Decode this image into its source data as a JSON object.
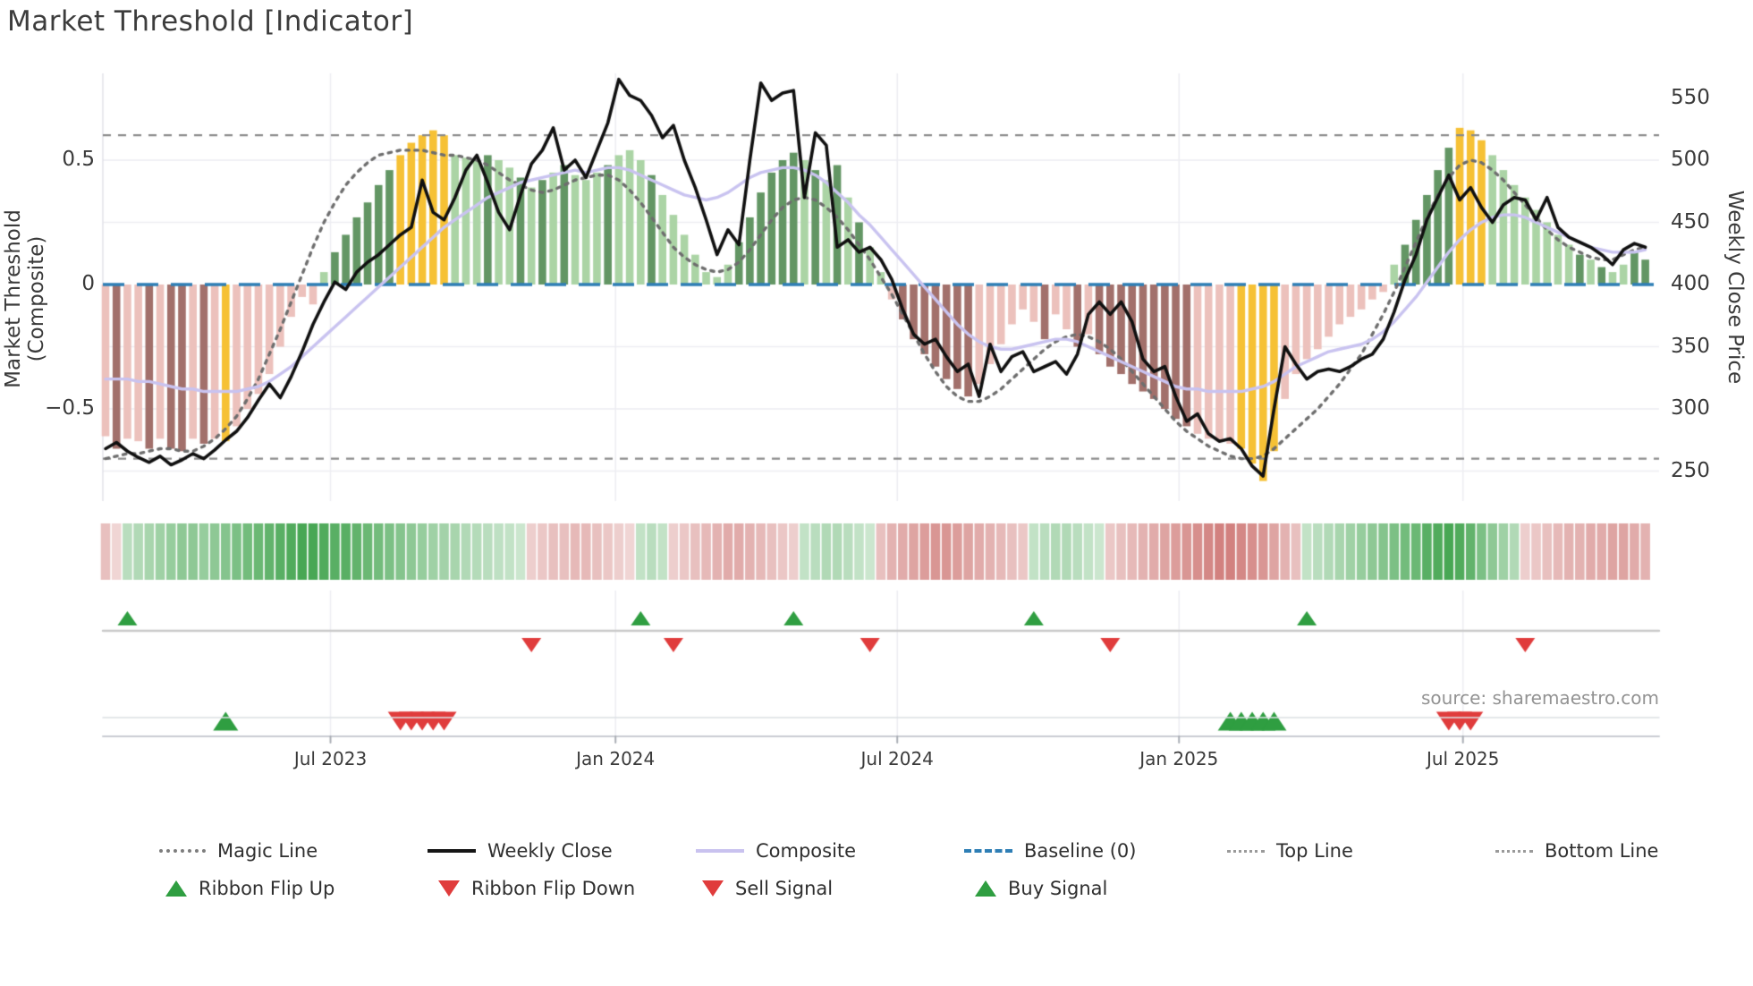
{
  "title": "Market Threshold [Indicator]",
  "source": "source: sharemaestro.com",
  "axes": {
    "left_title": "Market Threshold (Composite)",
    "right_title": "Weekly Close Price",
    "left_ticks": [
      {
        "value": 0.5,
        "label": "0.5"
      },
      {
        "value": 0,
        "label": "0"
      },
      {
        "value": -0.5,
        "label": "−0.5"
      }
    ],
    "right_ticks": [
      {
        "value": 550,
        "label": "550"
      },
      {
        "value": 500,
        "label": "500"
      },
      {
        "value": 450,
        "label": "450"
      },
      {
        "value": 400,
        "label": "400"
      },
      {
        "value": 350,
        "label": "350"
      },
      {
        "value": 300,
        "label": "300"
      },
      {
        "value": 250,
        "label": "250"
      }
    ],
    "x_ticks": [
      {
        "week": 20.6,
        "label": "Jul 2023"
      },
      {
        "week": 46.7,
        "label": "Jan 2024"
      },
      {
        "week": 72.5,
        "label": "Jul 2024"
      },
      {
        "week": 98.3,
        "label": "Jan 2025"
      },
      {
        "week": 124.3,
        "label": "Jul 2025"
      }
    ]
  },
  "colors": {
    "bar_light_pink": "#ecc1bc",
    "bar_dark_mauve": "#a2706b",
    "bar_yellow": "#f6c135",
    "bar_light_green": "#abd4a5",
    "bar_dark_green": "#639664",
    "weekly_close": "#101010",
    "composite": "#c9c3f0",
    "magic_line": "#6e6e6e",
    "baseline": "#2e7eb5",
    "top_bottom_line": "#8b8b8b",
    "ribbon_green": "#259633",
    "ribbon_red": "#c0504d",
    "signal_green": "#2f9e41",
    "signal_red": "#e03c3c",
    "grid": "#ededf2",
    "flip_row_line": "#c9c9c9"
  },
  "chart_data": {
    "type": "combo",
    "x_unit": "weekly, Feb 2023 - Nov 2025",
    "n_weeks": 142,
    "left_axis_range": [
      -0.85,
      0.85
    ],
    "right_axis_range": [
      226,
      570
    ],
    "reference_lines": {
      "baseline": 0,
      "top_line": 0.6,
      "bottom_line": -0.7
    },
    "threshold_bars": {
      "color_codes": "pmppmpmmpmpypppppppcgGGGGGGyyyyygggGggGgGgGgggGgggGgggggggGGGGGGgGgGgGggpmmmmmmmppppppmppmpmmmmmmmmmppppyyyyppppppppppgGGGGGyyyggggggggGgGggGG",
      "colors_legend": {
        "p": "light_pink",
        "m": "dark_mauve",
        "y": "yellow",
        "g": "light_green",
        "G": "dark_green"
      },
      "values": [
        -0.61,
        -0.66,
        -0.62,
        -0.63,
        -0.66,
        -0.62,
        -0.66,
        -0.67,
        -0.62,
        -0.64,
        -0.62,
        -0.63,
        -0.57,
        -0.5,
        -0.44,
        -0.36,
        -0.25,
        -0.13,
        -0.05,
        -0.08,
        0.05,
        0.13,
        0.2,
        0.27,
        0.33,
        0.4,
        0.46,
        0.52,
        0.57,
        0.6,
        0.62,
        0.6,
        0.52,
        0.51,
        0.5,
        0.52,
        0.5,
        0.47,
        0.43,
        0.39,
        0.42,
        0.45,
        0.48,
        0.44,
        0.42,
        0.45,
        0.48,
        0.52,
        0.54,
        0.5,
        0.44,
        0.36,
        0.28,
        0.2,
        0.12,
        0.05,
        0.03,
        0.08,
        0.17,
        0.27,
        0.37,
        0.45,
        0.5,
        0.53,
        0.5,
        0.46,
        0.42,
        0.48,
        0.35,
        0.25,
        0.15,
        0.05,
        -0.06,
        -0.14,
        -0.22,
        -0.28,
        -0.33,
        -0.38,
        -0.42,
        -0.45,
        -0.4,
        -0.32,
        -0.24,
        -0.16,
        -0.1,
        -0.15,
        -0.22,
        -0.12,
        -0.18,
        -0.25,
        -0.2,
        -0.28,
        -0.33,
        -0.36,
        -0.4,
        -0.43,
        -0.46,
        -0.5,
        -0.54,
        -0.57,
        -0.6,
        -0.62,
        -0.63,
        -0.64,
        -0.66,
        -0.72,
        -0.79,
        -0.67,
        -0.46,
        -0.36,
        -0.3,
        -0.26,
        -0.21,
        -0.16,
        -0.13,
        -0.1,
        -0.06,
        -0.03,
        0.08,
        0.16,
        0.26,
        0.36,
        0.46,
        0.55,
        0.63,
        0.62,
        0.58,
        0.52,
        0.46,
        0.4,
        0.35,
        0.3,
        0.25,
        0.2,
        0.16,
        0.12,
        0.1,
        0.07,
        0.05,
        0.08,
        0.13,
        0.1
      ]
    },
    "weekly_close": [
      268,
      273,
      266,
      261,
      257,
      262,
      255,
      259,
      264,
      260,
      267,
      275,
      282,
      293,
      307,
      320,
      309,
      326,
      346,
      368,
      386,
      402,
      396,
      410,
      418,
      424,
      432,
      440,
      446,
      484,
      458,
      452,
      470,
      492,
      504,
      482,
      458,
      444,
      472,
      497,
      508,
      526,
      492,
      500,
      486,
      508,
      530,
      565,
      552,
      548,
      536,
      518,
      528,
      500,
      478,
      452,
      424,
      444,
      432,
      500,
      562,
      548,
      554,
      556,
      470,
      522,
      512,
      430,
      436,
      426,
      430,
      420,
      404,
      380,
      360,
      352,
      356,
      342,
      330,
      336,
      310,
      352,
      330,
      342,
      346,
      330,
      334,
      338,
      328,
      344,
      376,
      386,
      376,
      386,
      370,
      340,
      330,
      334,
      310,
      290,
      296,
      280,
      274,
      276,
      268,
      254,
      246,
      300,
      350,
      336,
      324,
      330,
      332,
      330,
      334,
      340,
      344,
      356,
      378,
      404,
      424,
      452,
      470,
      488,
      468,
      478,
      462,
      450,
      464,
      470,
      468,
      452,
      470,
      446,
      438,
      434,
      430,
      424,
      416,
      428,
      433,
      430
    ],
    "composite": [
      -0.38,
      -0.38,
      -0.38,
      -0.39,
      -0.39,
      -0.4,
      -0.41,
      -0.42,
      -0.42,
      -0.43,
      -0.43,
      -0.43,
      -0.43,
      -0.42,
      -0.41,
      -0.39,
      -0.36,
      -0.33,
      -0.29,
      -0.25,
      -0.21,
      -0.17,
      -0.13,
      -0.09,
      -0.05,
      -0.01,
      0.03,
      0.07,
      0.11,
      0.15,
      0.19,
      0.23,
      0.26,
      0.29,
      0.32,
      0.35,
      0.37,
      0.39,
      0.41,
      0.42,
      0.43,
      0.44,
      0.45,
      0.46,
      0.45,
      0.46,
      0.47,
      0.47,
      0.46,
      0.44,
      0.42,
      0.4,
      0.38,
      0.36,
      0.35,
      0.34,
      0.35,
      0.37,
      0.4,
      0.43,
      0.45,
      0.46,
      0.47,
      0.47,
      0.46,
      0.44,
      0.41,
      0.37,
      0.33,
      0.28,
      0.24,
      0.19,
      0.14,
      0.09,
      0.04,
      -0.01,
      -0.06,
      -0.11,
      -0.16,
      -0.2,
      -0.23,
      -0.25,
      -0.26,
      -0.26,
      -0.25,
      -0.24,
      -0.23,
      -0.22,
      -0.22,
      -0.23,
      -0.25,
      -0.27,
      -0.29,
      -0.31,
      -0.33,
      -0.35,
      -0.37,
      -0.39,
      -0.41,
      -0.42,
      -0.42,
      -0.43,
      -0.43,
      -0.43,
      -0.43,
      -0.42,
      -0.41,
      -0.39,
      -0.36,
      -0.33,
      -0.31,
      -0.29,
      -0.27,
      -0.26,
      -0.25,
      -0.24,
      -0.22,
      -0.19,
      -0.15,
      -0.1,
      -0.05,
      0.01,
      0.07,
      0.13,
      0.18,
      0.22,
      0.25,
      0.27,
      0.28,
      0.28,
      0.27,
      0.25,
      0.23,
      0.21,
      0.19,
      0.17,
      0.15,
      0.14,
      0.13,
      0.13,
      0.13,
      0.14
    ],
    "magic_line": [
      -0.7,
      -0.69,
      -0.68,
      -0.68,
      -0.67,
      -0.66,
      -0.66,
      -0.67,
      -0.67,
      -0.65,
      -0.62,
      -0.58,
      -0.53,
      -0.46,
      -0.38,
      -0.28,
      -0.18,
      -0.07,
      0.04,
      0.15,
      0.25,
      0.33,
      0.4,
      0.45,
      0.49,
      0.52,
      0.53,
      0.54,
      0.54,
      0.54,
      0.53,
      0.52,
      0.52,
      0.51,
      0.5,
      0.48,
      0.45,
      0.42,
      0.4,
      0.38,
      0.37,
      0.38,
      0.4,
      0.42,
      0.43,
      0.44,
      0.44,
      0.42,
      0.38,
      0.33,
      0.27,
      0.21,
      0.15,
      0.11,
      0.08,
      0.06,
      0.05,
      0.06,
      0.09,
      0.14,
      0.2,
      0.26,
      0.31,
      0.34,
      0.35,
      0.34,
      0.31,
      0.27,
      0.22,
      0.16,
      0.1,
      0.03,
      -0.04,
      -0.12,
      -0.2,
      -0.28,
      -0.35,
      -0.41,
      -0.45,
      -0.47,
      -0.47,
      -0.45,
      -0.42,
      -0.38,
      -0.34,
      -0.3,
      -0.26,
      -0.23,
      -0.21,
      -0.2,
      -0.21,
      -0.23,
      -0.26,
      -0.3,
      -0.35,
      -0.4,
      -0.45,
      -0.5,
      -0.55,
      -0.59,
      -0.62,
      -0.65,
      -0.67,
      -0.69,
      -0.7,
      -0.7,
      -0.69,
      -0.66,
      -0.62,
      -0.58,
      -0.54,
      -0.5,
      -0.45,
      -0.4,
      -0.34,
      -0.28,
      -0.2,
      -0.12,
      -0.03,
      0.07,
      0.17,
      0.27,
      0.36,
      0.43,
      0.48,
      0.5,
      0.49,
      0.46,
      0.42,
      0.37,
      0.32,
      0.27,
      0.22,
      0.18,
      0.15,
      0.13,
      0.11,
      0.1,
      0.1,
      0.12,
      0.14,
      0.15
    ],
    "ribbon": [
      -0.3,
      -0.15,
      0.25,
      0.3,
      0.35,
      0.4,
      0.45,
      0.5,
      0.5,
      0.45,
      0.5,
      0.55,
      0.6,
      0.65,
      0.7,
      0.75,
      0.8,
      0.85,
      0.9,
      0.9,
      0.85,
      0.8,
      0.8,
      0.75,
      0.7,
      0.65,
      0.6,
      0.55,
      0.5,
      0.45,
      0.4,
      0.38,
      0.35,
      0.3,
      0.28,
      0.25,
      0.22,
      0.2,
      0.15,
      -0.2,
      -0.25,
      -0.3,
      -0.3,
      -0.35,
      -0.35,
      -0.3,
      -0.25,
      -0.2,
      -0.15,
      0.2,
      0.25,
      0.2,
      -0.2,
      -0.25,
      -0.3,
      -0.35,
      -0.4,
      -0.45,
      -0.45,
      -0.4,
      -0.35,
      -0.3,
      -0.25,
      -0.2,
      0.2,
      0.25,
      0.3,
      0.3,
      0.25,
      0.2,
      0.15,
      -0.3,
      -0.4,
      -0.45,
      -0.5,
      -0.55,
      -0.6,
      -0.6,
      -0.55,
      -0.5,
      -0.45,
      -0.4,
      -0.35,
      -0.3,
      -0.25,
      0.2,
      0.25,
      0.3,
      0.3,
      0.25,
      0.2,
      0.15,
      -0.25,
      -0.3,
      -0.35,
      -0.4,
      -0.45,
      -0.5,
      -0.55,
      -0.6,
      -0.65,
      -0.7,
      -0.75,
      -0.75,
      -0.7,
      -0.65,
      -0.6,
      -0.5,
      -0.4,
      -0.3,
      0.2,
      0.25,
      0.3,
      0.35,
      0.4,
      0.45,
      0.5,
      0.55,
      0.6,
      0.65,
      0.7,
      0.8,
      0.85,
      0.9,
      0.85,
      0.75,
      0.6,
      0.5,
      0.4,
      0.3,
      -0.2,
      -0.25,
      -0.3,
      -0.35,
      -0.4,
      -0.4,
      -0.45,
      -0.45,
      -0.5,
      -0.5,
      -0.45,
      -0.4
    ],
    "signals": {
      "ribbon_flip_up_weeks": [
        2,
        49,
        63,
        85,
        110
      ],
      "ribbon_flip_down_weeks": [
        39,
        52,
        70,
        92,
        130
      ],
      "buy_weeks": [
        11,
        103,
        104,
        105,
        106,
        107
      ],
      "sell_weeks": [
        27,
        28,
        29,
        30,
        31,
        123,
        124,
        125
      ]
    }
  },
  "legend": {
    "items": [
      {
        "label": "Magic Line",
        "swatch": "dotted-gray"
      },
      {
        "label": "Weekly Close",
        "swatch": "solid-black"
      },
      {
        "label": "Composite",
        "swatch": "solid-lavender"
      },
      {
        "label": "Baseline (0)",
        "swatch": "dashed-blue"
      },
      {
        "label": "Top Line",
        "swatch": "dotted-gray-small"
      },
      {
        "label": "Bottom Line",
        "swatch": "dotted-gray-small"
      },
      {
        "label": "Ribbon Flip Up",
        "swatch": "triangle-up-green"
      },
      {
        "label": "Ribbon Flip Down",
        "swatch": "triangle-down-red"
      },
      {
        "label": "Sell Signal",
        "swatch": "triangle-down-red"
      },
      {
        "label": "Buy Signal",
        "swatch": "triangle-up-green"
      }
    ]
  }
}
